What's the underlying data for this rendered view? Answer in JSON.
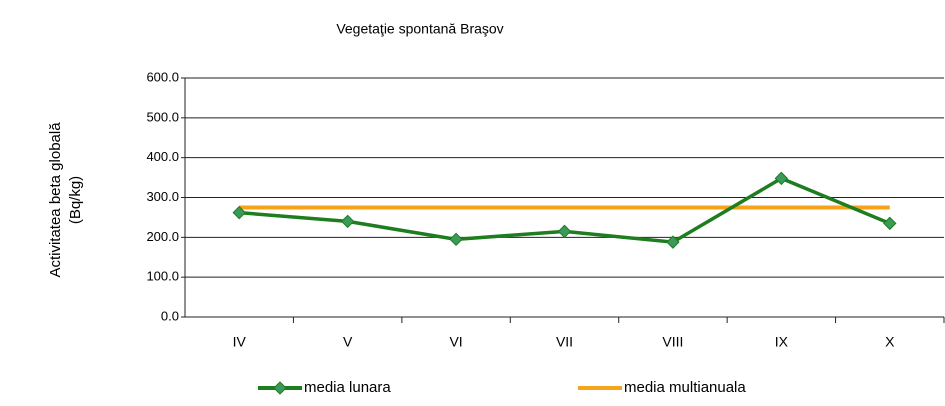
{
  "chart_data": {
    "type": "line",
    "title": "Vegetaţie spontană Braşov",
    "y_label": [
      "Activitatea  beta globală",
      "(Bq/kg)"
    ],
    "categories": [
      "IV",
      "V",
      "VI",
      "VII",
      "VIII",
      "IX",
      "X"
    ],
    "series": [
      {
        "name": "media lunara",
        "color": "#1e7d1e",
        "values": [
          262,
          240,
          195,
          215,
          188,
          348,
          235
        ]
      },
      {
        "name": "media multianuala",
        "color": "#f7a21b",
        "values": [
          275,
          275,
          275,
          275,
          275,
          275,
          275
        ]
      }
    ],
    "ylim": [
      0,
      600
    ],
    "yticks": [
      {
        "value": 0,
        "label": "0.0"
      },
      {
        "value": 100,
        "label": "100.0"
      },
      {
        "value": 200,
        "label": "200.0"
      },
      {
        "value": 300,
        "label": "300.0"
      },
      {
        "value": 400,
        "label": "400.0"
      },
      {
        "value": 500,
        "label": "500.0"
      },
      {
        "value": 600,
        "label": "600.0"
      }
    ],
    "grid": true,
    "legend": "bottom"
  }
}
